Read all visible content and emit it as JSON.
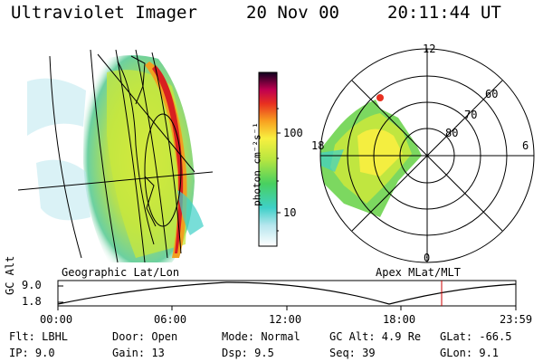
{
  "header": {
    "instrument": "Ultraviolet Imager",
    "date": "20 Nov 00",
    "time": "20:11:44 UT"
  },
  "colorbar": {
    "unit_label": "photon cm⁻²s⁻¹",
    "ticks": [
      "100",
      "10"
    ]
  },
  "polar_plot": {
    "mlt_labels": [
      "12",
      "18",
      "6",
      "0"
    ],
    "lat_labels": [
      "60",
      "70",
      "80"
    ],
    "title": "Apex MLat/MLT"
  },
  "geo_plot": {
    "title": "Geographic Lat/Lon"
  },
  "altitude_plot": {
    "ylabel": "GC Alt",
    "yticks": [
      "9.0",
      "1.8"
    ],
    "xticks": [
      "00:00",
      "06:00",
      "12:00",
      "18:00",
      "23:59"
    ],
    "marker_time": "20:11"
  },
  "footer": {
    "flt": "Flt: LBHL",
    "door": "Door: Open",
    "mode": "Mode: Normal",
    "gc_alt": "GC Alt: 4.9 Re",
    "glat": "GLat: -66.5",
    "ip": "IP:  9.0",
    "gain": "Gain: 13",
    "dsp": "Dsp:    9.5",
    "seq": "Seq: 39",
    "glon": "GLon:   9.1"
  },
  "colors": {
    "marker": "#cc0000"
  }
}
